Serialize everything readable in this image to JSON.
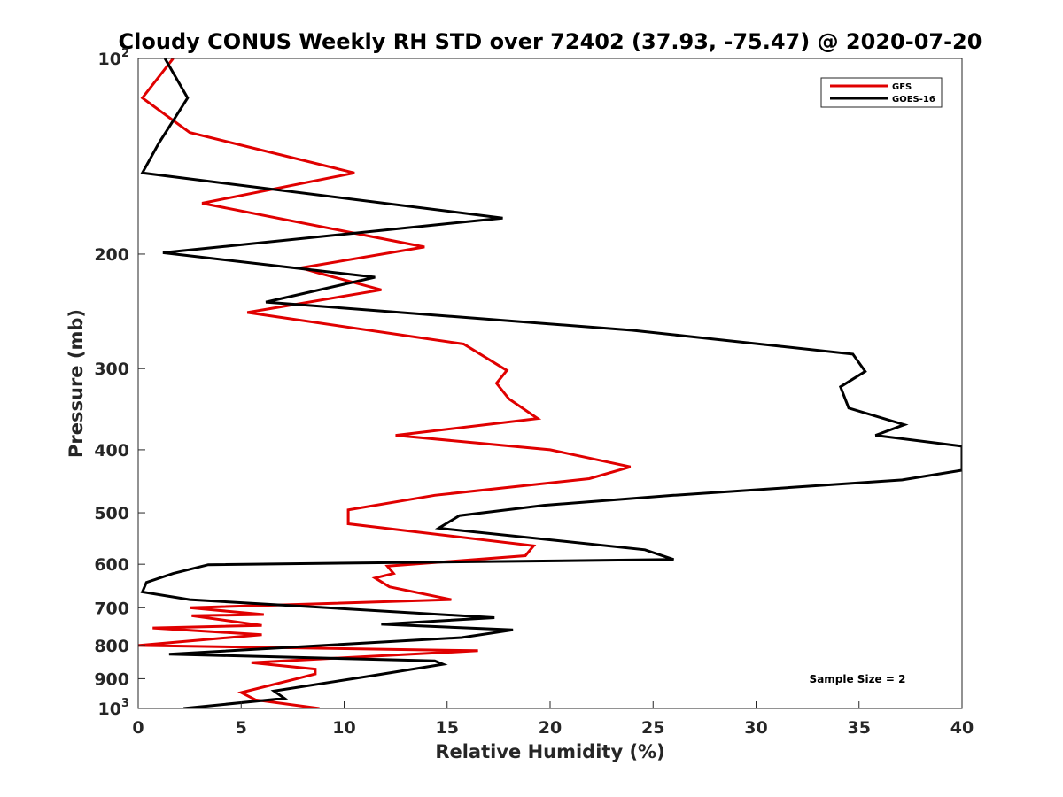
{
  "chart_data": {
    "type": "line",
    "title": "Cloudy CONUS Weekly RH STD over 72402 (37.93, -75.47) @ 2020-07-20",
    "xlabel": "Relative Humidity (%)",
    "ylabel": "Pressure (mb)",
    "xlim": [
      0,
      40
    ],
    "ylim": [
      100,
      1000
    ],
    "y_scale": "log",
    "y_reversed": true,
    "x_ticks": [
      0,
      5,
      10,
      15,
      20,
      25,
      30,
      35,
      40
    ],
    "y_ticks": [
      {
        "value": 100,
        "base": "10",
        "exp": "2"
      },
      {
        "value": 200,
        "label": "200"
      },
      {
        "value": 300,
        "label": "300"
      },
      {
        "value": 400,
        "label": "400"
      },
      {
        "value": 500,
        "label": "500"
      },
      {
        "value": 600,
        "label": "600"
      },
      {
        "value": 700,
        "label": "700"
      },
      {
        "value": 800,
        "label": "800"
      },
      {
        "value": 900,
        "label": "900"
      },
      {
        "value": 1000,
        "base": "10",
        "exp": "3"
      }
    ],
    "grid": false,
    "legend_position": "top-right",
    "annotation": "Sample Size = 2",
    "series": [
      {
        "name": "GFS",
        "color": "#e00000",
        "points": [
          [
            1.7,
            100
          ],
          [
            0.2,
            115
          ],
          [
            2.5,
            130
          ],
          [
            10.5,
            150
          ],
          [
            3.1,
            167
          ],
          [
            13.9,
            195
          ],
          [
            7.9,
            210
          ],
          [
            8.8,
            214
          ],
          [
            11.8,
            227
          ],
          [
            5.3,
            246
          ],
          [
            15.8,
            275
          ],
          [
            17.9,
            302
          ],
          [
            17.4,
            316
          ],
          [
            18.0,
            334
          ],
          [
            19.4,
            358
          ],
          [
            12.5,
            380
          ],
          [
            20.0,
            400
          ],
          [
            23.9,
            425
          ],
          [
            21.9,
            443
          ],
          [
            14.4,
            470
          ],
          [
            10.2,
            495
          ],
          [
            10.2,
            520
          ],
          [
            19.2,
            562
          ],
          [
            18.8,
            582
          ],
          [
            12.1,
            604
          ],
          [
            12.4,
            620
          ],
          [
            11.5,
            630
          ],
          [
            12.2,
            650
          ],
          [
            15.2,
            680
          ],
          [
            2.5,
            700
          ],
          [
            6.1,
            717
          ],
          [
            2.6,
            720
          ],
          [
            6.0,
            745
          ],
          [
            0.7,
            752
          ],
          [
            6.0,
            770
          ],
          [
            0.0,
            800
          ],
          [
            16.5,
            815
          ],
          [
            5.5,
            850
          ],
          [
            8.6,
            870
          ],
          [
            8.6,
            885
          ],
          [
            7.7,
            900
          ],
          [
            5.0,
            945
          ],
          [
            5.7,
            970
          ],
          [
            8.8,
            1000
          ]
        ]
      },
      {
        "name": "GOES-16",
        "color": "#000000",
        "points": [
          [
            1.3,
            100
          ],
          [
            2.4,
            115
          ],
          [
            1.0,
            135
          ],
          [
            0.2,
            150
          ],
          [
            17.7,
            176
          ],
          [
            1.2,
            199
          ],
          [
            11.5,
            217
          ],
          [
            6.2,
            237
          ],
          [
            24.0,
            262
          ],
          [
            34.7,
            285
          ],
          [
            35.3,
            303
          ],
          [
            34.1,
            320
          ],
          [
            34.5,
            345
          ],
          [
            37.2,
            366
          ],
          [
            35.8,
            380
          ],
          [
            40,
            395
          ],
          [
            40,
            430
          ],
          [
            37.1,
            445
          ],
          [
            26.0,
            470
          ],
          [
            19.7,
            487
          ],
          [
            15.6,
            505
          ],
          [
            14.6,
            528
          ],
          [
            24.6,
            570
          ],
          [
            26.0,
            590
          ],
          [
            3.4,
            601
          ],
          [
            1.7,
            620
          ],
          [
            0.4,
            640
          ],
          [
            0.2,
            662
          ],
          [
            2.5,
            680
          ],
          [
            17.3,
            725
          ],
          [
            11.8,
            742
          ],
          [
            18.2,
            757
          ],
          [
            15.7,
            778
          ],
          [
            1.5,
            825
          ],
          [
            14.4,
            845
          ],
          [
            14.8,
            855
          ],
          [
            11.4,
            890
          ],
          [
            6.6,
            940
          ],
          [
            7.1,
            965
          ],
          [
            2.2,
            1000
          ]
        ]
      }
    ]
  }
}
